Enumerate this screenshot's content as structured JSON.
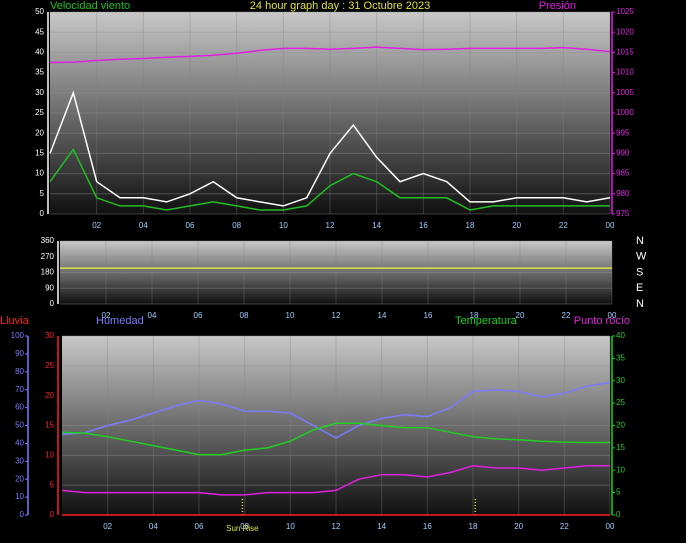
{
  "chart_data": [
    {
      "type": "line",
      "title": "24 hour graph day : 31 Octubre 2023",
      "x": [
        0,
        1,
        2,
        3,
        4,
        5,
        6,
        7,
        8,
        9,
        10,
        11,
        12,
        13,
        14,
        15,
        16,
        17,
        18,
        19,
        20,
        21,
        22,
        23,
        24
      ],
      "xlim": [
        0,
        24
      ],
      "xticks": [
        {
          "value": 2,
          "label": "02"
        },
        {
          "value": 4,
          "label": "04"
        },
        {
          "value": 6,
          "label": "06"
        },
        {
          "value": 8,
          "label": "08"
        },
        10,
        12,
        14,
        16,
        18,
        20,
        22,
        {
          "value": 24,
          "label": "00"
        }
      ],
      "ylim": [
        0,
        50
      ],
      "yticks": [
        0,
        5,
        10,
        15,
        20,
        25,
        30,
        35,
        40,
        45,
        50
      ],
      "y2lim": [
        975,
        1025
      ],
      "y2ticks": [
        975,
        980,
        985,
        990,
        995,
        1000,
        1005,
        1010,
        1015,
        1020,
        1025
      ],
      "series": [
        {
          "color": "#ffffff",
          "values": [
            15,
            30,
            8,
            4,
            4,
            3,
            5,
            8,
            4,
            3,
            2,
            4,
            15,
            22,
            14,
            8,
            10,
            8,
            3,
            3,
            4,
            4,
            4,
            3,
            4
          ]
        },
        {
          "name": "Velocidad viento",
          "color": "#20c020",
          "values": [
            8,
            16,
            4,
            2,
            2,
            1,
            2,
            3,
            2,
            1,
            1,
            2,
            7,
            10,
            8,
            4,
            4,
            4,
            1,
            2,
            2,
            2,
            2,
            2,
            2
          ]
        },
        {
          "name": "Presión",
          "color": "#e020e0",
          "axis": "y2",
          "values": [
            1012.5,
            1012.6,
            1013,
            1013.3,
            1013.5,
            1013.8,
            1014,
            1014.3,
            1014.8,
            1015.5,
            1016,
            1016,
            1015.8,
            1016,
            1016.3,
            1016,
            1015.7,
            1015.8,
            1016,
            1016,
            1016,
            1016,
            1016.2,
            1015.8,
            1015.2
          ]
        }
      ]
    },
    {
      "type": "line",
      "x": [
        0,
        24
      ],
      "xlim": [
        0,
        24
      ],
      "xticks": [
        {
          "value": 2,
          "label": "02"
        },
        {
          "value": 4,
          "label": "04"
        },
        {
          "value": 6,
          "label": "06"
        },
        {
          "value": 8,
          "label": "08"
        },
        10,
        12,
        14,
        16,
        18,
        20,
        22,
        {
          "value": 24,
          "label": "00"
        }
      ],
      "ylim": [
        0,
        360
      ],
      "yticks": [
        0,
        90,
        180,
        270,
        360
      ],
      "y2lim": [
        0,
        360
      ],
      "y2ticks": [
        {
          "value": 360,
          "label": "N"
        },
        {
          "value": 270,
          "label": "W"
        },
        {
          "value": 180,
          "label": "S"
        },
        {
          "value": 90,
          "label": "E"
        },
        {
          "value": 0,
          "label": "N"
        }
      ],
      "series": [
        {
          "color": "#e0e040",
          "values": [
            205,
            205
          ]
        }
      ]
    },
    {
      "type": "line",
      "x": [
        0,
        1,
        2,
        3,
        4,
        5,
        6,
        7,
        8,
        9,
        10,
        11,
        12,
        13,
        14,
        15,
        16,
        17,
        18,
        19,
        20,
        21,
        22,
        23,
        24
      ],
      "xlim": [
        0,
        24
      ],
      "xticks": [
        {
          "value": 2,
          "label": "02"
        },
        {
          "value": 4,
          "label": "04"
        },
        {
          "value": 6,
          "label": "06"
        },
        {
          "value": 8,
          "label": "08"
        },
        10,
        12,
        14,
        16,
        18,
        20,
        22,
        {
          "value": 24,
          "label": "00"
        }
      ],
      "ylim": [
        0,
        30
      ],
      "yticks": [
        0,
        5,
        10,
        15,
        20,
        25,
        30
      ],
      "y3lim": [
        0,
        100
      ],
      "y3ticks": [
        0,
        10,
        20,
        30,
        40,
        50,
        60,
        70,
        80,
        90,
        100
      ],
      "y2lim": [
        0,
        40
      ],
      "y2ticks": [
        0,
        5,
        10,
        15,
        20,
        25,
        30,
        35,
        40
      ],
      "sunrise": 7.9,
      "sunset": 18.1,
      "sunrise_label": "Sun Rise",
      "series": [
        {
          "name": "Lluvia",
          "color": "#ff2020",
          "values": [
            0,
            0,
            0,
            0,
            0,
            0,
            0,
            0,
            0,
            0,
            0,
            0,
            0,
            0,
            0,
            0,
            0,
            0,
            0,
            0,
            0,
            0,
            0,
            0,
            0
          ]
        },
        {
          "name": "Humedad",
          "color": "#7b7bff",
          "axis": "y3",
          "values": [
            45,
            46,
            50,
            53,
            57,
            61,
            64,
            62,
            58,
            58,
            57,
            50,
            43,
            50,
            54,
            56,
            55,
            60,
            69,
            70,
            69,
            66,
            68,
            72,
            74
          ]
        },
        {
          "name": "Temperatura",
          "color": "#20d020",
          "axis": "y2",
          "values": [
            18.5,
            18.3,
            17.5,
            16.5,
            15.5,
            14.5,
            13.5,
            13.5,
            14.5,
            15,
            16.5,
            19,
            20.5,
            20.5,
            20,
            19.5,
            19.5,
            18.5,
            17.5,
            17,
            16.8,
            16.5,
            16.3,
            16.2,
            16.2
          ]
        },
        {
          "name": "Punto rocío",
          "color": "#e020e0",
          "axis": "y2",
          "values": [
            5.5,
            5,
            5,
            5,
            5,
            5,
            5,
            4.5,
            4.5,
            5,
            5,
            5,
            5.5,
            8,
            9,
            9,
            8.5,
            9.5,
            11,
            10.5,
            10.5,
            10,
            10.5,
            11,
            11
          ]
        }
      ]
    }
  ]
}
